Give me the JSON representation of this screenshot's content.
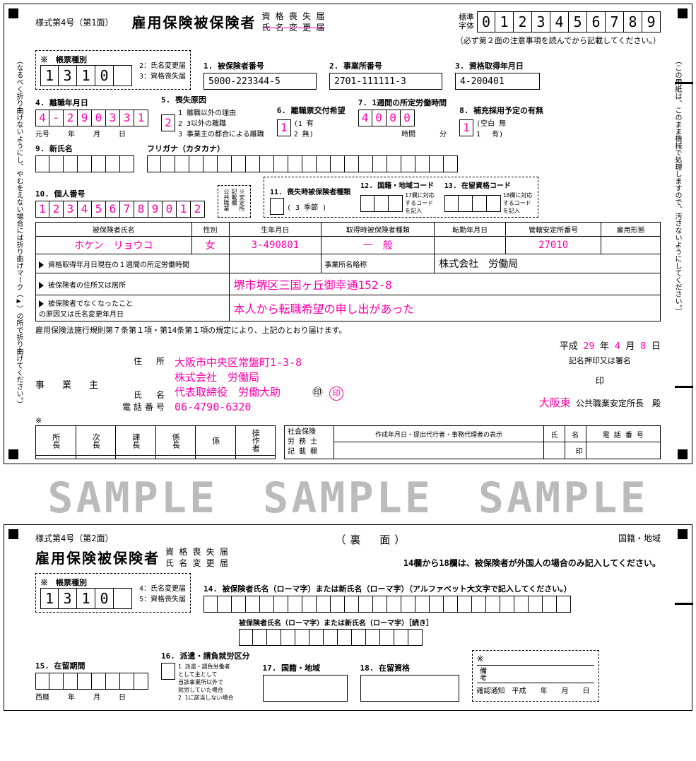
{
  "colors": {
    "accent": "#ff00aa",
    "border": "#000000",
    "sample_gray": "#bbbbbb",
    "bg": "#ffffff"
  },
  "front": {
    "form_id": "様式第4号（第1面）",
    "title": "雇用保険被保険者",
    "sub1": "資 格 喪 失 届",
    "sub2_strike": "氏 名 変 更 届",
    "std_label": "標準\n字体",
    "std_digits": [
      "0",
      "1",
      "2",
      "3",
      "4",
      "5",
      "6",
      "7",
      "8",
      "9"
    ],
    "std_note": "（必ず第２面の注意事項を読んでから記載してください。）",
    "slip": {
      "title": "※　帳票種別",
      "digits": [
        "1",
        "3",
        "1",
        "0",
        ""
      ],
      "legend": "2：氏名変更届\n3：資格喪失届"
    },
    "f1": {
      "label": "1. 被保険者番号",
      "value": "5000-223344-5"
    },
    "f2": {
      "label": "2. 事業所番号",
      "value": "2701-111111-3"
    },
    "f3": {
      "label": "3. 資格取得年月日",
      "value": "4-200401"
    },
    "f4": {
      "label": "4. 離職年月日",
      "digits": [
        "4",
        "-",
        "2",
        "9",
        "0",
        "3",
        "3",
        "1"
      ],
      "sublabels": [
        "元号",
        "年",
        "月",
        "日"
      ]
    },
    "f5": {
      "label": "5. 喪失原因",
      "digits": [
        "2"
      ],
      "legend": "1 離職以外の理由\n2 3以外の離職\n3 事業主の都合による離職"
    },
    "f6": {
      "label": "6. 離職票交付希望",
      "digits": [
        "1"
      ],
      "legend": "(1 有\n 2 無)"
    },
    "f7": {
      "label": "7. 1週間の所定労働時間",
      "digits": [
        "4",
        "0",
        "0",
        "0"
      ],
      "sublabels": [
        "時間",
        "分"
      ]
    },
    "f8": {
      "label": "8. 補充採用予定の有無",
      "digits": [
        "1"
      ],
      "legend": "(空白 無\n 1　 有)"
    },
    "f9": {
      "label": "9. 新氏名",
      "boxes": 7,
      "furigana_label": "フリガナ（カタカナ）",
      "furigana_boxes": 22
    },
    "f10": {
      "label": "10. 個人番号",
      "digits": [
        "1",
        "2",
        "3",
        "4",
        "5",
        "6",
        "7",
        "8",
        "9",
        "0",
        "1",
        "2"
      ]
    },
    "f10_side": "※安定所記載欄 公共職業",
    "f11": {
      "label": "11. 喪失時被保険者種類",
      "boxes": 1,
      "note": "( 3 季節 )"
    },
    "f12": {
      "label": "12. 国籍・地域コード",
      "boxes": 3,
      "note": "17欄に対応\nするコード\nを記入"
    },
    "f13": {
      "label": "13. 在留資格コード",
      "boxes": 4,
      "note": "18欄に対応\nするコード\nを記入"
    },
    "details": {
      "hdr": [
        "被保険者氏名",
        "性別",
        "生年月日",
        "取得時被保険者種類",
        "転勤年月日",
        "管轄安定所番号",
        "雇用形態"
      ],
      "row": [
        "ホケン　リョウコ",
        "女",
        "3-490801",
        "一　般",
        "",
        "27010",
        ""
      ],
      "r2_label": "資格取得年月日現在の１週間の所定労働時間",
      "r2_v": "",
      "r2b_label": "事業所名略称",
      "r2b_v": "株式会社　労働局",
      "r3_label": "被保険者の住所又は居所",
      "r3_v": "堺市堺区三国ヶ丘御幸通152-8",
      "r4_label": "被保険者でなくなったこと\nの原因又は氏名変更年月日",
      "r4_v": "本人から転職希望の申し出があった"
    },
    "decl": "雇用保険法施行規則第７条第１項・第14条第１項の規定により、上記のとおり届けます。",
    "date": {
      "era": "平成",
      "y": "29",
      "m": "4",
      "d": "8"
    },
    "employer": {
      "addr_label": "住　所",
      "addr": "大阪市中央区常盤町1-3-8",
      "name_label": "氏　名",
      "name1": "株式会社　労働局",
      "name2": "代表取締役　労働大助",
      "seal": "印",
      "tel_label": "電話番号",
      "tel": "06-4790-6320",
      "side": "事　業　主",
      "sig_label": "記名押印又は署名",
      "sig_seal": "印",
      "office": "大阪東",
      "office_suffix": "公共職業安定所長　殿"
    },
    "bottom_left": [
      "所長",
      "次長",
      "課長",
      "係長",
      "係",
      "操作者"
    ],
    "bottom_right": {
      "rows": [
        "社会保険",
        "労 務 士",
        "記 載 欄"
      ],
      "hdr": [
        "作成年月日・提出代行者・事務代理者の表示",
        "氏",
        "名",
        "電 話 番 号"
      ],
      "seal": "印"
    },
    "star": "※",
    "side_left": "（なるべく折り曲げないようにし、やむをえない場合には折り曲げマーク（▶）の所で折り曲げてください。）",
    "side_right": "（この用紙は、このまま機械で処理しますので、汚さないようにしてください。）"
  },
  "sample": "SAMPLE　SAMPLE　SAMPLE",
  "back": {
    "form_id": "様式第4号（第2面）",
    "title": "雇用保険被保険者",
    "sub1": "資 格 喪 失 届",
    "sub2": "氏 名 変 更 届",
    "center": "（裏　面）",
    "right_hdr": "国籍・地域",
    "note": "14欄から18欄は、被保険者が外国人の場合のみ記入してください。",
    "slip": {
      "title": "※　帳票種別",
      "digits": [
        "1",
        "3",
        "1",
        "0",
        ""
      ],
      "legend": "4：氏名変更届\n5：資格喪失届"
    },
    "f14": {
      "label": "14. 被保険者氏名（ローマ字）または新氏名（ローマ字）（アルファベット大文字で記入してください。）",
      "boxes": 26
    },
    "f14b": {
      "label": "被保険者氏名（ローマ字）または新氏名（ローマ字）［続き］",
      "boxes": 13
    },
    "f15": {
      "label": "15. 在留期間",
      "boxes": 8,
      "sublabels": [
        "西暦",
        "年",
        "月",
        "日"
      ]
    },
    "f16": {
      "label": "16. 派遣・請負就労区分",
      "boxes": 1,
      "legend": "1 派遣・請負労働者\n   として主として\n   当該事業所以外で\n   就労していた場合\n2 1に該当しない場合"
    },
    "f17": {
      "label": "17. 国籍・地域",
      "box": ""
    },
    "f18": {
      "label": "18. 在留資格",
      "box": ""
    },
    "memo": {
      "star": "※",
      "label": "備考",
      "foot": "確認通知　平成　　年　　月　　日"
    }
  }
}
